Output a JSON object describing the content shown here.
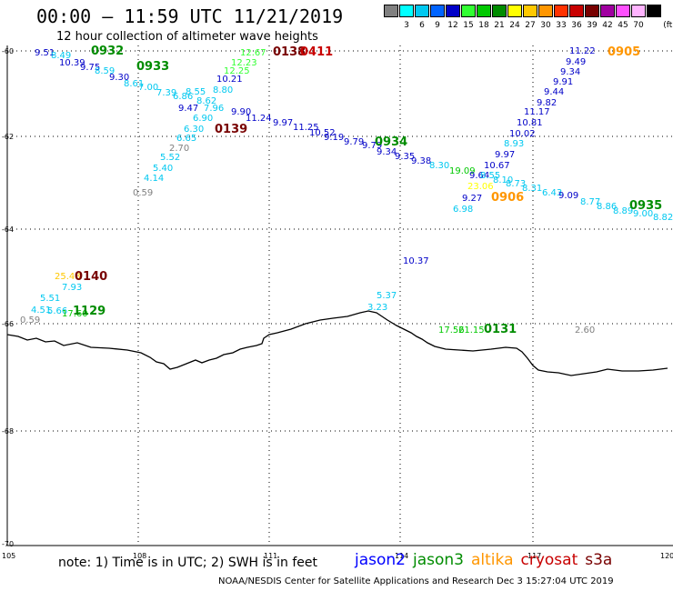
{
  "title": "00:00 – 11:59 UTC 11/21/2019",
  "subtitle": "12 hour collection of altimeter wave heights",
  "scale": {
    "unit": "(ft)",
    "steps": [
      {
        "label": "",
        "color": "#808080"
      },
      {
        "label": "3",
        "color": "#00ffff"
      },
      {
        "label": "6",
        "color": "#00c8f0"
      },
      {
        "label": "9",
        "color": "#0064ff"
      },
      {
        "label": "12",
        "color": "#0000c8"
      },
      {
        "label": "15",
        "color": "#32ff32"
      },
      {
        "label": "18",
        "color": "#00c800"
      },
      {
        "label": "21",
        "color": "#008c00"
      },
      {
        "label": "24",
        "color": "#ffff00"
      },
      {
        "label": "27",
        "color": "#ffc800"
      },
      {
        "label": "30",
        "color": "#ff9600"
      },
      {
        "label": "33",
        "color": "#ff3200"
      },
      {
        "label": "36",
        "color": "#c80000"
      },
      {
        "label": "39",
        "color": "#780000"
      },
      {
        "label": "42",
        "color": "#a000a0"
      },
      {
        "label": "45",
        "color": "#ff50ff"
      },
      {
        "label": "70",
        "color": "#ffb4ff"
      },
      {
        "label": "",
        "color": "#000000"
      }
    ]
  },
  "lat_labels": [
    "-60",
    "-62",
    "-64",
    "-66",
    "-68",
    "-70"
  ],
  "lon_labels": [
    "105",
    "108",
    "111",
    "114",
    "117",
    "120"
  ],
  "wave_labels": [
    {
      "t": "9.51",
      "c": "#0000c8"
    },
    {
      "t": "8.49",
      "c": "#00c8f0"
    },
    {
      "t": "10.39",
      "c": "#0000c8"
    },
    {
      "t": "9.75",
      "c": "#0000c8"
    },
    {
      "t": "8.59",
      "c": "#00c8f0"
    },
    {
      "t": "9.30",
      "c": "#0000c8"
    },
    {
      "t": "8.61",
      "c": "#00c8f0"
    },
    {
      "t": "7.00",
      "c": "#00c8f0"
    },
    {
      "t": "7.39",
      "c": "#00c8f0"
    },
    {
      "t": "6.86",
      "c": "#00c8f0"
    },
    {
      "t": "8.55",
      "c": "#00c8f0"
    },
    {
      "t": "8.62",
      "c": "#00c8f0"
    },
    {
      "t": "9.47",
      "c": "#0000c8"
    },
    {
      "t": "6.90",
      "c": "#00c8f0"
    },
    {
      "t": "7.96",
      "c": "#00c8f0"
    },
    {
      "t": "6.30",
      "c": "#00c8f0"
    },
    {
      "t": "6.65",
      "c": "#00c8f0"
    },
    {
      "t": "2.70",
      "c": "#808080"
    },
    {
      "t": "5.52",
      "c": "#00c8f0"
    },
    {
      "t": "5.40",
      "c": "#00c8f0"
    },
    {
      "t": "4.14",
      "c": "#00c8f0"
    },
    {
      "t": "0.59",
      "c": "#808080"
    },
    {
      "t": "12.67",
      "c": "#32ff32"
    },
    {
      "t": "12.23",
      "c": "#32ff32"
    },
    {
      "t": "12.25",
      "c": "#32ff32"
    },
    {
      "t": "10.21",
      "c": "#0000c8"
    },
    {
      "t": "8.80",
      "c": "#00c8f0"
    },
    {
      "t": "9.90",
      "c": "#0000c8"
    },
    {
      "t": "11.24",
      "c": "#0000c8"
    },
    {
      "t": "9.97",
      "c": "#0000c8"
    },
    {
      "t": "11.25",
      "c": "#0000c8"
    },
    {
      "t": "10.52",
      "c": "#0000c8"
    },
    {
      "t": "9.19",
      "c": "#0000c8"
    },
    {
      "t": "9.79",
      "c": "#0000c8"
    },
    {
      "t": "9.79",
      "c": "#0000c8"
    },
    {
      "t": "9.34",
      "c": "#0000c8"
    },
    {
      "t": "9.35",
      "c": "#0000c8"
    },
    {
      "t": "9.38",
      "c": "#0000c8"
    },
    {
      "t": "8.30",
      "c": "#00c8f0"
    },
    {
      "t": "19.09",
      "c": "#00c800"
    },
    {
      "t": "23.06",
      "c": "#ffff00"
    },
    {
      "t": "9.27",
      "c": "#0000c8"
    },
    {
      "t": "6.98",
      "c": "#00c8f0"
    },
    {
      "t": "10.67",
      "c": "#0000c8"
    },
    {
      "t": "9.97",
      "c": "#0000c8"
    },
    {
      "t": "8.93",
      "c": "#00c8f0"
    },
    {
      "t": "10.02",
      "c": "#0000c8"
    },
    {
      "t": "10.81",
      "c": "#0000c8"
    },
    {
      "t": "11.17",
      "c": "#0000c8"
    },
    {
      "t": "9.82",
      "c": "#0000c8"
    },
    {
      "t": "9.44",
      "c": "#0000c8"
    },
    {
      "t": "9.91",
      "c": "#0000c8"
    },
    {
      "t": "9.34",
      "c": "#0000c8"
    },
    {
      "t": "9.49",
      "c": "#0000c8"
    },
    {
      "t": "11.22",
      "c": "#0000c8"
    },
    {
      "t": "9.64",
      "c": "#0000c8"
    },
    {
      "t": "8.55",
      "c": "#00c8f0"
    },
    {
      "t": "8.10",
      "c": "#00c8f0"
    },
    {
      "t": "8.73",
      "c": "#00c8f0"
    },
    {
      "t": "8.31",
      "c": "#00c8f0"
    },
    {
      "t": "6.43",
      "c": "#00c8f0"
    },
    {
      "t": "9.09",
      "c": "#0000c8"
    },
    {
      "t": "8.77",
      "c": "#00c8f0"
    },
    {
      "t": "8.86",
      "c": "#00c8f0"
    },
    {
      "t": "8.89",
      "c": "#00c8f0"
    },
    {
      "t": "9.00",
      "c": "#00c8f0"
    },
    {
      "t": "8.82",
      "c": "#00c8f0"
    },
    {
      "t": "10.37",
      "c": "#0000c8"
    },
    {
      "t": "25.48",
      "c": "#ffc800"
    },
    {
      "t": "7.93",
      "c": "#00c8f0"
    },
    {
      "t": "5.51",
      "c": "#00c8f0"
    },
    {
      "t": "4.51",
      "c": "#00c8f0"
    },
    {
      "t": "5.66",
      "c": "#00c8f0"
    },
    {
      "t": "17.60",
      "c": "#00c800"
    },
    {
      "t": "0.59",
      "c": "#808080"
    },
    {
      "t": "5.37",
      "c": "#00c8f0"
    },
    {
      "t": "3.23",
      "c": "#00c8f0"
    },
    {
      "t": "17.56",
      "c": "#00c800"
    },
    {
      "t": "21.15",
      "c": "#00c800"
    },
    {
      "t": "2.60",
      "c": "#808080"
    }
  ],
  "time_labels": [
    {
      "t": "0932",
      "c": "#008c00"
    },
    {
      "t": "0933",
      "c": "#008c00"
    },
    {
      "t": "0139",
      "c": "#780000"
    },
    {
      "t": "0138",
      "c": "#780000"
    },
    {
      "t": "0411",
      "c": "#c80000"
    },
    {
      "t": "0934",
      "c": "#008c00"
    },
    {
      "t": "0906",
      "c": "#ff9600"
    },
    {
      "t": "0905",
      "c": "#ff9600"
    },
    {
      "t": "0935",
      "c": "#008c00"
    },
    {
      "t": "0140",
      "c": "#780000"
    },
    {
      "t": "1129",
      "c": "#008c00"
    },
    {
      "t": "0131",
      "c": "#008c00"
    }
  ],
  "note": "note: 1) Time is in UTC; 2) SWH is in feet",
  "legend": [
    {
      "name": "jason2",
      "color": "#0000ff"
    },
    {
      "name": "jason3",
      "color": "#008c00"
    },
    {
      "name": "altika",
      "color": "#ff9600"
    },
    {
      "name": "cryosat",
      "color": "#c80000"
    },
    {
      "name": "s3a",
      "color": "#780000"
    }
  ],
  "footer": "NOAA/NESDIS Center for Satellite Applications and Research   Dec  3 15:27:04 UTC 2019"
}
